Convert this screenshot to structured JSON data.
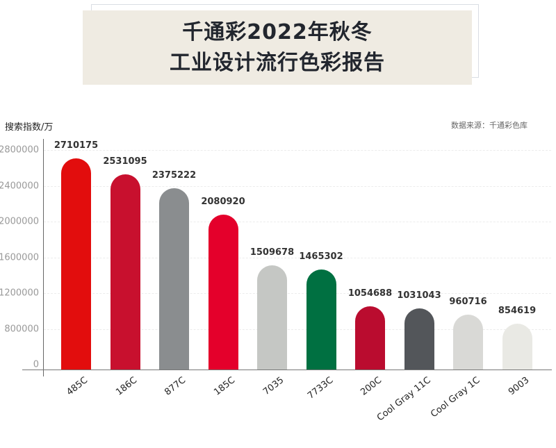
{
  "header": {
    "title_line1": "千通彩2022年秋冬",
    "title_line2": "工业设计流行色彩报告"
  },
  "chart_meta": {
    "y_axis_title": "搜索指数/万",
    "source": "数据来源：千通彩色库"
  },
  "y_ticks": [
    "2800000",
    "2400000",
    "2000000",
    "1600000",
    "1200000",
    "800000",
    "0"
  ],
  "bars": [
    {
      "label": "485C",
      "value": "2710175",
      "color": "#e20d0d"
    },
    {
      "label": "186C",
      "value": "2531095",
      "color": "#c8102e"
    },
    {
      "label": "877C",
      "value": "2375222",
      "color": "#8a8d8f"
    },
    {
      "label": "185C",
      "value": "2080920",
      "color": "#e4002b"
    },
    {
      "label": "7035",
      "value": "1509678",
      "color": "#c5c7c4"
    },
    {
      "label": "7733C",
      "value": "1465302",
      "color": "#007041"
    },
    {
      "label": "200C",
      "value": "1054688",
      "color": "#ba0c2f"
    },
    {
      "label": "Cool Gray 11C",
      "value": "1031043",
      "color": "#53565a"
    },
    {
      "label": "Cool Gray 1C",
      "value": "960716",
      "color": "#d9d9d6"
    },
    {
      "label": "9003",
      "value": "854619",
      "color": "#e9e9e4"
    }
  ],
  "chart_data": {
    "type": "bar",
    "title": "千通彩2022年秋冬工业设计流行色彩报告",
    "xlabel": "",
    "ylabel": "搜索指数/万",
    "source": "数据来源：千通彩色库",
    "categories": [
      "485C",
      "186C",
      "877C",
      "185C",
      "7035",
      "7733C",
      "200C",
      "Cool Gray 11C",
      "Cool Gray 1C",
      "9003"
    ],
    "values": [
      2710175,
      2531095,
      2375222,
      2080920,
      1509678,
      1465302,
      1054688,
      1031043,
      960716,
      854619
    ],
    "colors": [
      "#e20d0d",
      "#c8102e",
      "#8a8d8f",
      "#e4002b",
      "#c5c7c4",
      "#007041",
      "#ba0c2f",
      "#53565a",
      "#d9d9d6",
      "#e9e9e4"
    ],
    "y_ticks": [
      0,
      800000,
      1200000,
      1600000,
      2000000,
      2400000,
      2800000
    ],
    "ylim": [
      0,
      2800000
    ],
    "grid": true,
    "legend": "none",
    "data_labels": true
  }
}
